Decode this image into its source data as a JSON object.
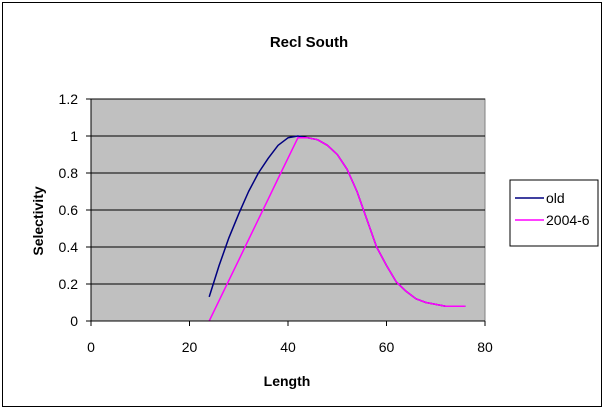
{
  "chart_data": {
    "type": "line",
    "title": "Recl South",
    "xlabel": "Length",
    "ylabel": "Selectivity",
    "xlim": [
      0,
      80
    ],
    "ylim": [
      0,
      1.2
    ],
    "x_ticks": [
      "0",
      "20",
      "40",
      "60",
      "80"
    ],
    "y_ticks": [
      "0",
      "0.2",
      "0.4",
      "0.6",
      "0.8",
      "1",
      "1.2"
    ],
    "grid": "horizontal",
    "plot_background": "#c0c0c0",
    "legend_position": "right",
    "series": [
      {
        "name": "old",
        "color": "#000080",
        "x": [
          24,
          26,
          28,
          30,
          32,
          34,
          36,
          38,
          40,
          42,
          44,
          46,
          48,
          50,
          52,
          54,
          56,
          58,
          60,
          62,
          64,
          66,
          68,
          70,
          72,
          74,
          76
        ],
        "y": [
          0.13,
          0.3,
          0.45,
          0.58,
          0.7,
          0.8,
          0.88,
          0.95,
          0.99,
          1.0,
          0.99,
          0.98,
          0.95,
          0.9,
          0.82,
          0.7,
          0.55,
          0.4,
          0.3,
          0.21,
          0.16,
          0.12,
          0.1,
          0.09,
          0.08,
          0.08,
          0.08
        ]
      },
      {
        "name": "2004-6",
        "color": "#ff00ff",
        "x": [
          24,
          26,
          28,
          30,
          32,
          34,
          36,
          38,
          40,
          42,
          44,
          46,
          48,
          50,
          52,
          54,
          56,
          58,
          60,
          62,
          64,
          66,
          68,
          70,
          72,
          74,
          76
        ],
        "y": [
          0.0,
          0.11,
          0.22,
          0.33,
          0.44,
          0.55,
          0.66,
          0.77,
          0.88,
          0.99,
          0.99,
          0.98,
          0.95,
          0.9,
          0.82,
          0.7,
          0.55,
          0.4,
          0.3,
          0.21,
          0.16,
          0.12,
          0.1,
          0.09,
          0.08,
          0.08,
          0.08
        ]
      }
    ]
  }
}
